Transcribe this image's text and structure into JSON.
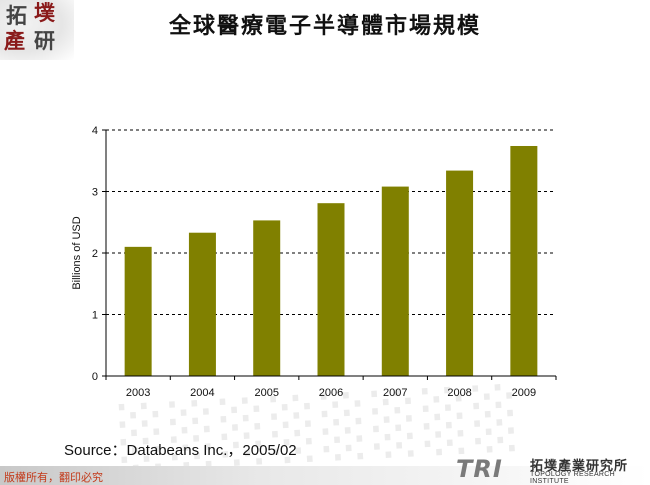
{
  "slide": {
    "title": "全球醫療電子半導體市場規模",
    "source": "Source：Databeans Inc.，2005/02",
    "copyright": "版權所有，翻印必究"
  },
  "logo": {
    "chars": [
      "拓",
      "墣",
      "產",
      "研"
    ],
    "tri_mark": "TRI",
    "org_name_cn": "拓墣產業研究所",
    "org_name_en": "TOPOLOGY RESEARCH INSTITUTE"
  },
  "colors": {
    "bar": "#808000",
    "grid": "#000000",
    "copyright": "#c33a1a"
  },
  "chart_data": {
    "type": "bar",
    "categories": [
      "2003",
      "2004",
      "2005",
      "2006",
      "2007",
      "2008",
      "2009"
    ],
    "values": [
      2.1,
      2.33,
      2.53,
      2.81,
      3.08,
      3.34,
      3.74
    ],
    "title": "",
    "xlabel": "",
    "ylabel": "Billions of USD",
    "ylim": [
      0,
      4
    ],
    "yticks": [
      "0",
      "1",
      "2",
      "3",
      "4"
    ],
    "grid": "dashed horizontal",
    "legend": "none"
  }
}
